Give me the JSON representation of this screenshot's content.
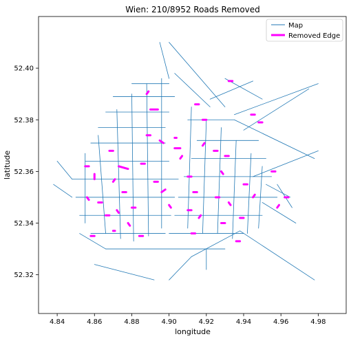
{
  "chart_data": {
    "type": "line",
    "title": "Wien: 210/8952 Roads Removed",
    "xlabel": "longitude",
    "ylabel": "latitude",
    "xlim": [
      0.83,
      0.995
    ],
    "ylim": [
      52.305,
      52.42
    ],
    "xticks": [
      0.84,
      0.86,
      0.88,
      0.9,
      0.92,
      0.94,
      0.96,
      0.98
    ],
    "xtick_labels": [
      "4.84",
      "4.86",
      "4.88",
      "4.90",
      "4.92",
      "4.94",
      "4.96",
      "4.98"
    ],
    "yticks": [
      52.32,
      52.34,
      52.36,
      52.38,
      52.4
    ],
    "ytick_labels": [
      "52.32",
      "52.34",
      "52.36",
      "52.38",
      "52.40"
    ],
    "grid": false,
    "legend_position": "top-right",
    "series": [
      {
        "name": "Map",
        "color": "#1f77b4",
        "edges": [
          [
            [
              0.848,
              52.357
            ],
            [
              0.905,
              52.357
            ]
          ],
          [
            [
              0.85,
              52.35
            ],
            [
              0.903,
              52.35
            ]
          ],
          [
            [
              0.852,
              52.343
            ],
            [
              0.901,
              52.343
            ]
          ],
          [
            [
              0.855,
              52.364
            ],
            [
              0.9,
              52.364
            ]
          ],
          [
            [
              0.858,
              52.371
            ],
            [
              0.898,
              52.371
            ]
          ],
          [
            [
              0.862,
              52.377
            ],
            [
              0.898,
              52.377
            ]
          ],
          [
            [
              0.866,
              52.383
            ],
            [
              0.9,
              52.383
            ]
          ],
          [
            [
              0.87,
              52.389
            ],
            [
              0.903,
              52.389
            ]
          ],
          [
            [
              0.88,
              52.394
            ],
            [
              0.9,
              52.394
            ]
          ],
          [
            [
              0.858,
              52.336
            ],
            [
              0.898,
              52.336
            ]
          ],
          [
            [
              0.862,
              52.374
            ],
            [
              0.866,
              52.336
            ]
          ],
          [
            [
              0.872,
              52.384
            ],
            [
              0.874,
              52.334
            ]
          ],
          [
            [
              0.88,
              52.39
            ],
            [
              0.881,
              52.333
            ]
          ],
          [
            [
              0.888,
              52.394
            ],
            [
              0.889,
              52.335
            ]
          ],
          [
            [
              0.896,
              52.396
            ],
            [
              0.896,
              52.338
            ]
          ],
          [
            [
              0.855,
              52.34
            ],
            [
              0.855,
              52.367
            ]
          ],
          [
            [
              0.903,
              52.398
            ],
            [
              0.922,
              52.385
            ]
          ],
          [
            [
              0.91,
              52.38
            ],
            [
              0.935,
              52.38
            ]
          ],
          [
            [
              0.915,
              52.372
            ],
            [
              0.948,
              52.372
            ]
          ],
          [
            [
              0.912,
              52.365
            ],
            [
              0.952,
              52.365
            ]
          ],
          [
            [
              0.908,
              52.358
            ],
            [
              0.955,
              52.358
            ]
          ],
          [
            [
              0.905,
              52.35
            ],
            [
              0.958,
              52.35
            ]
          ],
          [
            [
              0.903,
              52.343
            ],
            [
              0.95,
              52.343
            ]
          ],
          [
            [
              0.9,
              52.336
            ],
            [
              0.94,
              52.336
            ]
          ],
          [
            [
              0.912,
              52.385
            ],
            [
              0.91,
              52.338
            ]
          ],
          [
            [
              0.92,
              52.38
            ],
            [
              0.918,
              52.336
            ]
          ],
          [
            [
              0.928,
              52.377
            ],
            [
              0.926,
              52.336
            ]
          ],
          [
            [
              0.936,
              52.372
            ],
            [
              0.934,
              52.334
            ]
          ],
          [
            [
              0.944,
              52.367
            ],
            [
              0.942,
              52.336
            ]
          ],
          [
            [
              0.95,
              52.362
            ],
            [
              0.948,
              52.338
            ]
          ],
          [
            [
              0.895,
              52.41
            ],
            [
              0.9,
              52.396
            ]
          ],
          [
            [
              0.9,
              52.41
            ],
            [
              0.93,
              52.385
            ]
          ],
          [
            [
              0.922,
              52.388
            ],
            [
              0.945,
              52.395
            ]
          ],
          [
            [
              0.93,
              52.396
            ],
            [
              0.95,
              52.388
            ]
          ],
          [
            [
              0.935,
              52.382
            ],
            [
              0.98,
              52.394
            ]
          ],
          [
            [
              0.94,
              52.376
            ],
            [
              0.975,
              52.392
            ]
          ],
          [
            [
              0.935,
              52.38
            ],
            [
              0.978,
              52.365
            ]
          ],
          [
            [
              0.945,
              52.358
            ],
            [
              0.98,
              52.368
            ]
          ],
          [
            [
              0.958,
              52.355
            ],
            [
              0.966,
              52.346
            ]
          ],
          [
            [
              0.938,
              52.337
            ],
            [
              0.978,
              52.318
            ]
          ],
          [
            [
              0.86,
              52.324
            ],
            [
              0.892,
              52.318
            ]
          ],
          [
            [
              0.9,
              52.318
            ],
            [
              0.912,
              52.327
            ]
          ],
          [
            [
              0.912,
              52.327
            ],
            [
              0.938,
              52.337
            ]
          ],
          [
            [
              0.84,
              52.364
            ],
            [
              0.848,
              52.357
            ]
          ],
          [
            [
              0.838,
              52.355
            ],
            [
              0.848,
              52.35
            ]
          ],
          [
            [
              0.852,
              52.336
            ],
            [
              0.866,
              52.33
            ]
          ],
          [
            [
              0.866,
              52.33
            ],
            [
              0.93,
              52.33
            ]
          ],
          [
            [
              0.92,
              52.33
            ],
            [
              0.92,
              52.322
            ]
          ],
          [
            [
              0.95,
              52.348
            ],
            [
              0.968,
              52.34
            ]
          ],
          [
            [
              0.952,
              52.355
            ],
            [
              0.965,
              52.35
            ]
          ]
        ]
      },
      {
        "name": "Removed Edge",
        "color": "#ff00ff",
        "edges": [
          [
            [
              0.855,
              52.362
            ],
            [
              0.857,
              52.362
            ]
          ],
          [
            [
              0.86,
              52.357
            ],
            [
              0.86,
              52.359
            ]
          ],
          [
            [
              0.856,
              52.35
            ],
            [
              0.857,
              52.349
            ]
          ],
          [
            [
              0.862,
              52.348
            ],
            [
              0.864,
              52.348
            ]
          ],
          [
            [
              0.868,
              52.368
            ],
            [
              0.87,
              52.368
            ]
          ],
          [
            [
              0.873,
              52.362
            ],
            [
              0.878,
              52.361
            ]
          ],
          [
            [
              0.87,
              52.356
            ],
            [
              0.871,
              52.357
            ]
          ],
          [
            [
              0.875,
              52.352
            ],
            [
              0.877,
              52.352
            ]
          ],
          [
            [
              0.866,
              52.343
            ],
            [
              0.868,
              52.343
            ]
          ],
          [
            [
              0.872,
              52.345
            ],
            [
              0.873,
              52.344
            ]
          ],
          [
            [
              0.88,
              52.346
            ],
            [
              0.882,
              52.346
            ]
          ],
          [
            [
              0.878,
              52.34
            ],
            [
              0.879,
              52.339
            ]
          ],
          [
            [
              0.884,
              52.335
            ],
            [
              0.886,
              52.335
            ]
          ],
          [
            [
              0.87,
              52.337
            ],
            [
              0.871,
              52.337
            ]
          ],
          [
            [
              0.858,
              52.335
            ],
            [
              0.86,
              52.335
            ]
          ],
          [
            [
              0.885,
              52.363
            ],
            [
              0.887,
              52.363
            ]
          ],
          [
            [
              0.888,
              52.374
            ],
            [
              0.89,
              52.374
            ]
          ],
          [
            [
              0.89,
              52.384
            ],
            [
              0.894,
              52.384
            ]
          ],
          [
            [
              0.888,
              52.39
            ],
            [
              0.889,
              52.391
            ]
          ],
          [
            [
              0.895,
              52.372
            ],
            [
              0.897,
              52.371
            ]
          ],
          [
            [
              0.892,
              52.356
            ],
            [
              0.894,
              52.356
            ]
          ],
          [
            [
              0.896,
              52.352
            ],
            [
              0.898,
              52.353
            ]
          ],
          [
            [
              0.9,
              52.347
            ],
            [
              0.901,
              52.346
            ]
          ],
          [
            [
              0.903,
              52.369
            ],
            [
              0.906,
              52.369
            ]
          ],
          [
            [
              0.903,
              52.373
            ],
            [
              0.904,
              52.373
            ]
          ],
          [
            [
              0.906,
              52.365
            ],
            [
              0.907,
              52.366
            ]
          ],
          [
            [
              0.91,
              52.358
            ],
            [
              0.912,
              52.358
            ]
          ],
          [
            [
              0.913,
              52.352
            ],
            [
              0.915,
              52.352
            ]
          ],
          [
            [
              0.91,
              52.345
            ],
            [
              0.912,
              52.345
            ]
          ],
          [
            [
              0.916,
              52.342
            ],
            [
              0.917,
              52.343
            ]
          ],
          [
            [
              0.912,
              52.336
            ],
            [
              0.914,
              52.336
            ]
          ],
          [
            [
              0.918,
              52.38
            ],
            [
              0.92,
              52.38
            ]
          ],
          [
            [
              0.914,
              52.386
            ],
            [
              0.916,
              52.386
            ]
          ],
          [
            [
              0.918,
              52.37
            ],
            [
              0.919,
              52.371
            ]
          ],
          [
            [
              0.924,
              52.368
            ],
            [
              0.926,
              52.368
            ]
          ],
          [
            [
              0.93,
              52.366
            ],
            [
              0.932,
              52.366
            ]
          ],
          [
            [
              0.928,
              52.36
            ],
            [
              0.929,
              52.359
            ]
          ],
          [
            [
              0.925,
              52.35
            ],
            [
              0.927,
              52.35
            ]
          ],
          [
            [
              0.932,
              52.348
            ],
            [
              0.933,
              52.347
            ]
          ],
          [
            [
              0.928,
              52.34
            ],
            [
              0.93,
              52.34
            ]
          ],
          [
            [
              0.936,
              52.333
            ],
            [
              0.938,
              52.333
            ]
          ],
          [
            [
              0.94,
              52.355
            ],
            [
              0.942,
              52.355
            ]
          ],
          [
            [
              0.945,
              52.35
            ],
            [
              0.946,
              52.351
            ]
          ],
          [
            [
              0.944,
              52.382
            ],
            [
              0.946,
              52.382
            ]
          ],
          [
            [
              0.948,
              52.379
            ],
            [
              0.95,
              52.379
            ]
          ],
          [
            [
              0.955,
              52.36
            ],
            [
              0.957,
              52.36
            ]
          ],
          [
            [
              0.962,
              52.35
            ],
            [
              0.964,
              52.35
            ]
          ],
          [
            [
              0.958,
              52.346
            ],
            [
              0.959,
              52.347
            ]
          ],
          [
            [
              0.932,
              52.395
            ],
            [
              0.934,
              52.395
            ]
          ],
          [
            [
              0.938,
              52.342
            ],
            [
              0.94,
              52.342
            ]
          ]
        ]
      }
    ]
  }
}
